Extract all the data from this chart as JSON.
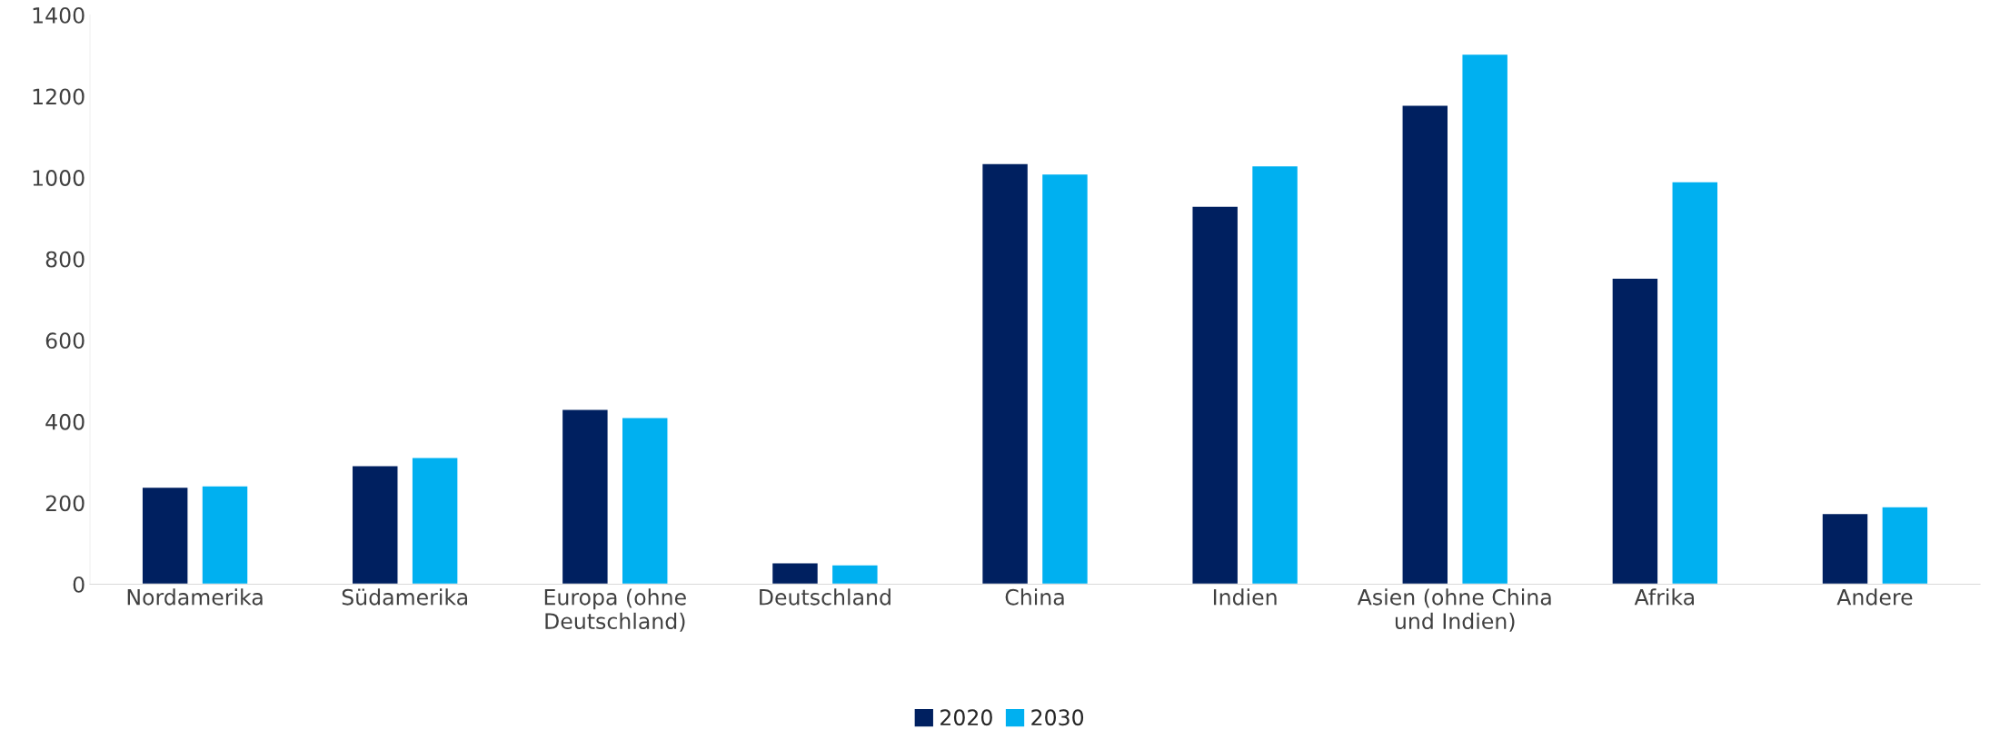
{
  "chart_data": {
    "type": "bar",
    "categories": [
      "Nordamerika",
      "Südamerika",
      "Europa (ohne\nDeutschland)",
      "Deutschland",
      "China",
      "Indien",
      "Asien (ohne China\nund Indien)",
      "Afrika",
      "Andere"
    ],
    "series": [
      {
        "name": "2020",
        "color": "#002060",
        "values": [
          239,
          292,
          430,
          53,
          1035,
          930,
          1178,
          753,
          174
        ]
      },
      {
        "name": "2030",
        "color": "#00b0f0",
        "values": [
          242,
          312,
          410,
          48,
          1009,
          1029,
          1304,
          990,
          191
        ]
      }
    ],
    "ylim": [
      0,
      1400
    ],
    "yticks": [
      0,
      200,
      400,
      600,
      800,
      1000,
      1200,
      1400
    ],
    "grid": false,
    "legend": "bottom"
  }
}
